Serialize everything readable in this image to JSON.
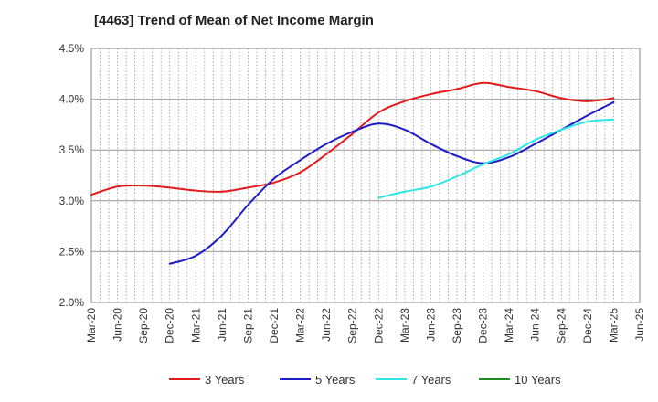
{
  "chart_data": {
    "type": "line",
    "title": "[4463]  Trend of Mean of Net Income Margin",
    "xlabel": "",
    "ylabel": "",
    "x_ticks": [
      "Mar-20",
      "Jun-20",
      "Sep-20",
      "Dec-20",
      "Mar-21",
      "Jun-21",
      "Sep-21",
      "Dec-21",
      "Mar-22",
      "Jun-22",
      "Sep-22",
      "Dec-22",
      "Mar-23",
      "Jun-23",
      "Sep-23",
      "Dec-23",
      "Mar-24",
      "Jun-24",
      "Sep-24",
      "Dec-24",
      "Mar-25",
      "Jun-25"
    ],
    "y_ticks": [
      "2.0%",
      "2.5%",
      "3.0%",
      "3.5%",
      "4.0%",
      "4.5%"
    ],
    "ylim": [
      2.0,
      4.5
    ],
    "y_unit": "%",
    "grid": true,
    "legend_position": "bottom",
    "series": [
      {
        "name": "3 Years",
        "color": "#e31a1c",
        "points": [
          [
            "Mar-20",
            3.06
          ],
          [
            "Jun-20",
            3.14
          ],
          [
            "Sep-20",
            3.15
          ],
          [
            "Dec-20",
            3.13
          ],
          [
            "Mar-21",
            3.1
          ],
          [
            "Jun-21",
            3.09
          ],
          [
            "Sep-21",
            3.13
          ],
          [
            "Dec-21",
            3.18
          ],
          [
            "Mar-22",
            3.28
          ],
          [
            "Jun-22",
            3.46
          ],
          [
            "Sep-22",
            3.66
          ],
          [
            "Dec-22",
            3.87
          ],
          [
            "Mar-23",
            3.98
          ],
          [
            "Jun-23",
            4.05
          ],
          [
            "Sep-23",
            4.1
          ],
          [
            "Dec-23",
            4.16
          ],
          [
            "Mar-24",
            4.12
          ],
          [
            "Jun-24",
            4.08
          ],
          [
            "Sep-24",
            4.01
          ],
          [
            "Dec-24",
            3.98
          ],
          [
            "Mar-25",
            4.01
          ]
        ]
      },
      {
        "name": "5 Years",
        "color": "#1c1cc8",
        "points": [
          [
            "Dec-20",
            2.38
          ],
          [
            "Mar-21",
            2.46
          ],
          [
            "Jun-21",
            2.66
          ],
          [
            "Sep-21",
            2.96
          ],
          [
            "Dec-21",
            3.22
          ],
          [
            "Mar-22",
            3.4
          ],
          [
            "Jun-22",
            3.56
          ],
          [
            "Sep-22",
            3.68
          ],
          [
            "Dec-22",
            3.76
          ],
          [
            "Mar-23",
            3.7
          ],
          [
            "Jun-23",
            3.56
          ],
          [
            "Sep-23",
            3.44
          ],
          [
            "Dec-23",
            3.37
          ],
          [
            "Mar-24",
            3.43
          ],
          [
            "Jun-24",
            3.56
          ],
          [
            "Sep-24",
            3.7
          ],
          [
            "Dec-24",
            3.84
          ],
          [
            "Mar-25",
            3.97
          ]
        ]
      },
      {
        "name": "7 Years",
        "color": "#2ee6e6",
        "points": [
          [
            "Dec-22",
            3.03
          ],
          [
            "Mar-23",
            3.09
          ],
          [
            "Jun-23",
            3.14
          ],
          [
            "Sep-23",
            3.24
          ],
          [
            "Dec-23",
            3.36
          ],
          [
            "Mar-24",
            3.46
          ],
          [
            "Jun-24",
            3.6
          ],
          [
            "Sep-24",
            3.7
          ],
          [
            "Dec-24",
            3.78
          ],
          [
            "Mar-25",
            3.8
          ]
        ]
      },
      {
        "name": "10 Years",
        "color": "#228b22",
        "points": []
      }
    ]
  }
}
